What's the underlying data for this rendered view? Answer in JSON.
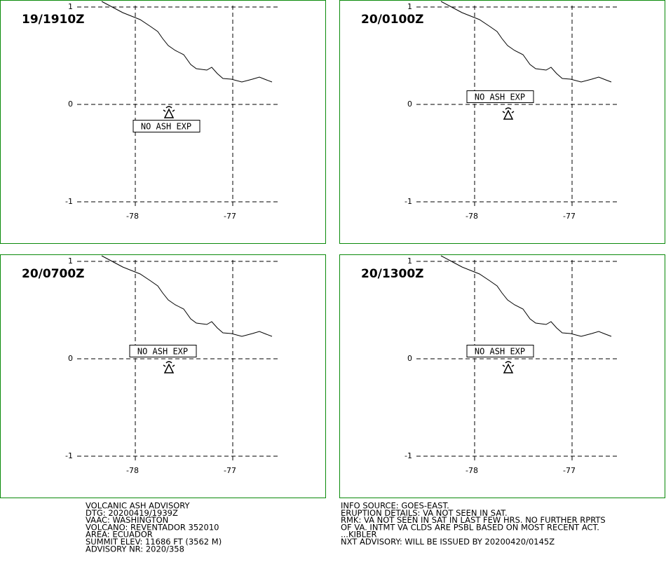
{
  "panels": [
    {
      "time": "19/1910Z",
      "label": "NO ASH EXP"
    },
    {
      "time": "20/0100Z",
      "label": "NO ASH EXP"
    },
    {
      "time": "20/0700Z",
      "label": "NO ASH EXP"
    },
    {
      "time": "20/1300Z",
      "label": "NO ASH EXP"
    }
  ],
  "lat_ticks": [
    "1",
    "0",
    "-1"
  ],
  "lon_ticks": [
    "-78",
    "-77"
  ],
  "advisory": {
    "left": [
      "VOLCANIC ASH ADVISORY",
      "DTG: 20200419/1939Z",
      "VAAC: WASHINGTON",
      "VOLCANO: REVENTADOR 352010",
      "AREA: ECUADOR",
      "SUMMIT ELEV: 11686 FT (3562 M)",
      "ADVISORY NR: 2020/358"
    ],
    "right": [
      "INFO SOURCE: GOES-EAST.",
      "ERUPTION DETAILS: VA NOT SEEN IN SAT.",
      "RMK: VA NOT SEEN IN SAT IN LAST FEW HRS. NO FURTHER RPRTS",
      "OF VA. INTMT VA CLDS ARE PSBL BASED ON MOST RECENT ACT.",
      "...KIBLER",
      "NXT ADVISORY: WILL BE ISSUED BY 20200420/0145Z"
    ]
  }
}
